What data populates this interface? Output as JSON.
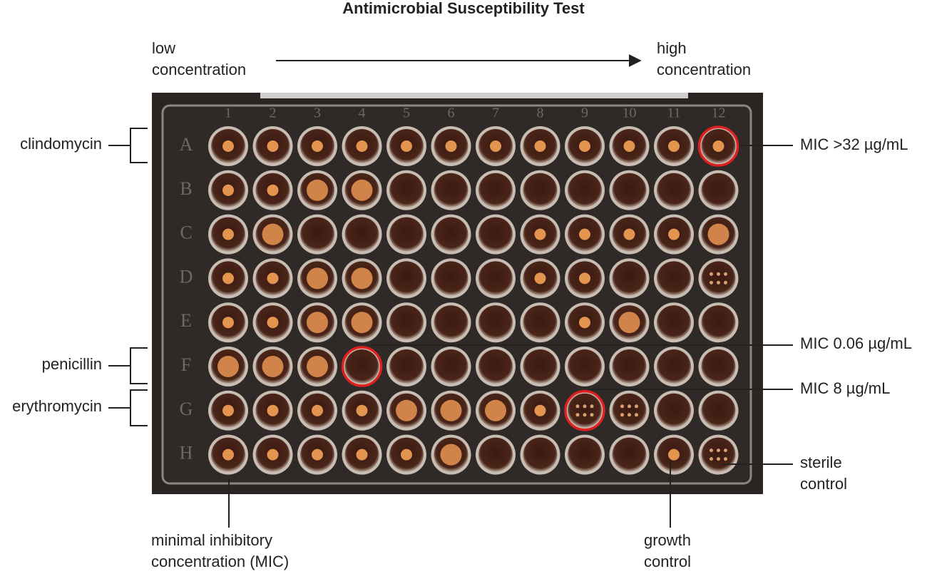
{
  "title": "Antimicrobial Susceptibility Test",
  "low_label": [
    "low",
    "concentration"
  ],
  "high_label": [
    "high",
    "concentration"
  ],
  "plate": {
    "columns": [
      "1",
      "2",
      "3",
      "4",
      "5",
      "6",
      "7",
      "8",
      "9",
      "10",
      "11",
      "12"
    ],
    "rows": [
      "A",
      "B",
      "C",
      "D",
      "E",
      "F",
      "G",
      "H"
    ]
  },
  "antibiotics": [
    "clindomycin",
    "penicillin",
    "erythromycin"
  ],
  "mic_labels": [
    "MIC >32 µg/mL",
    "MIC 0.06 µg/mL",
    "MIC 8 µg/mL"
  ],
  "bottom_labels": {
    "mic": [
      "minimal inhibitory",
      "concentration (MIC)"
    ],
    "growth": [
      "growth",
      "control"
    ],
    "sterile": [
      "sterile",
      "control"
    ]
  }
}
